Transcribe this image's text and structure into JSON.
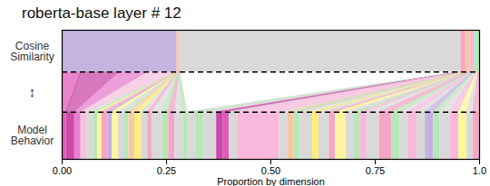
{
  "chart_data": {
    "type": "alignment",
    "title": "roberta-base layer # 12",
    "xlabel": "Proportion by dimension",
    "xlim": [
      0,
      1
    ],
    "xticks": [
      {
        "value": 0,
        "label": "0.00"
      },
      {
        "value": 0.25,
        "label": "0.25"
      },
      {
        "value": 0.5,
        "label": "0.50"
      },
      {
        "value": 0.75,
        "label": "0.75"
      },
      {
        "value": 1,
        "label": "1.0"
      }
    ],
    "link_label": "↕",
    "tick_labels": "x",
    "rows": [
      {
        "name": "Cosine Similarity",
        "values": [
          0.275,
          0.007,
          0.673,
          0.012,
          0.01,
          0.01,
          0.013
        ],
        "colors": [
          "#c5b3e0",
          "#f7c6a8",
          "#d9d9d9",
          "#f4a6c6",
          "#f8c9a0",
          "#f9b8dc",
          "#b8e6b8"
        ]
      },
      {
        "name": "Model Behavior",
        "values": [
          0.01,
          0.02,
          0.015,
          0.015,
          0.015,
          0.01,
          0.01,
          0.015,
          0.01,
          0.015,
          0.015,
          0.01,
          0.015,
          0.015,
          0.015,
          0.01,
          0.025,
          0.015,
          0.015,
          0.02,
          0.01,
          0.02,
          0.02,
          0.03,
          0.015,
          0.015,
          0.02,
          0.1,
          0.02,
          0.015,
          0.015,
          0.03,
          0.015,
          0.025,
          0.015,
          0.025,
          0.02,
          0.015,
          0.015,
          0.03,
          0.03,
          0.02,
          0.02,
          0.02,
          0.02,
          0.02,
          0.015,
          0.025,
          0.02,
          0.02,
          0.015,
          0.015
        ],
        "colors": [
          "#e05cb8",
          "#c94aa8",
          "#e77fcf",
          "#f5c2dd",
          "#d9d9d9",
          "#b8e6b8",
          "#fff59d",
          "#f4a6c6",
          "#c3b1e1",
          "#fff59d",
          "#d9d9d9",
          "#b8e6b8",
          "#f8c9a0",
          "#ffee77",
          "#d9d9d9",
          "#f4a6c6",
          "#d9d9d9",
          "#b8e6b8",
          "#f4a6c6",
          "#d9d9d9",
          "#b8e6b8",
          "#d9d9d9",
          "#b8e6b8",
          "#d9d9d9",
          "#c94aa8",
          "#e05cb8",
          "#d9d9d9",
          "#f9b8dc",
          "#d9d9d9",
          "#f8c9a0",
          "#b8e6b8",
          "#d9d9d9",
          "#ffee77",
          "#d9d9d9",
          "#f4a6c6",
          "#fff59d",
          "#d9d9d9",
          "#b8e6b8",
          "#f9b8dc",
          "#d9d9d9",
          "#f4a6c6",
          "#b8e6b8",
          "#d9d9d9",
          "#f9b8dc",
          "#d9d9d9",
          "#c3b1e1",
          "#b8e6b8",
          "#d9d9d9",
          "#f9b8dc",
          "#fff59d",
          "#d9d9d9",
          "#f4a6c6"
        ],
        "source": [
          0,
          0,
          0,
          0,
          1,
          1,
          1,
          1,
          1,
          1,
          1,
          1,
          1,
          1,
          1,
          1,
          1,
          1,
          1,
          1,
          1,
          3,
          3,
          3,
          3,
          3,
          3,
          3,
          3,
          3,
          3,
          4,
          4,
          4,
          4,
          4,
          4,
          4,
          4,
          5,
          5,
          5,
          5,
          5,
          5,
          5,
          6,
          6,
          6,
          6,
          6,
          6
        ]
      }
    ]
  }
}
